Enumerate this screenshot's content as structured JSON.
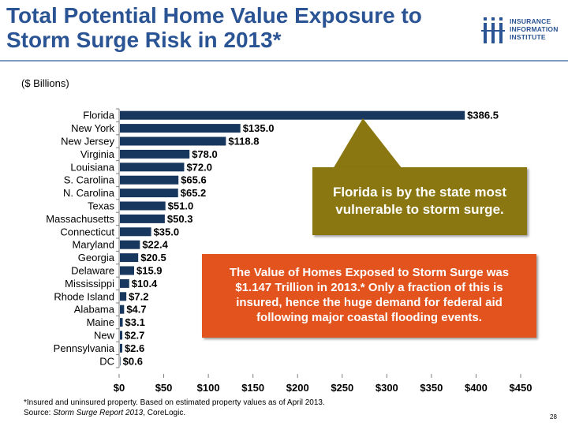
{
  "header": {
    "title_line1": "Total Potential Home Value Exposure to",
    "title_line2": "Storm Surge Risk in 2013*"
  },
  "logo": {
    "line1": "INSURANCE",
    "line2": "INFORMATION",
    "line3": "INSTITUTE"
  },
  "units_label": "($ Billions)",
  "chart_data": {
    "type": "bar",
    "orientation": "horizontal",
    "title": "Total Potential Home Value Exposure to Storm Surge Risk in 2013*",
    "units": "($ Billions)",
    "categories": [
      "Florida",
      "New York",
      "New Jersey",
      "Virginia",
      "Louisiana",
      "S. Carolina",
      "N. Carolina",
      "Texas",
      "Massachusetts",
      "Connecticut",
      "Maryland",
      "Georgia",
      "Delaware",
      "Mississippi",
      "Rhode Island",
      "Alabama",
      "Maine",
      "New",
      "Pennsylvania",
      "DC"
    ],
    "values": [
      386.5,
      135.0,
      118.8,
      78.0,
      72.0,
      65.6,
      65.2,
      51.0,
      50.3,
      35.0,
      22.4,
      20.5,
      15.9,
      10.4,
      7.2,
      4.7,
      3.1,
      2.7,
      2.6,
      0.6
    ],
    "value_labels": [
      "$386.5",
      "$135.0",
      "$118.8",
      "$78.0",
      "$72.0",
      "$65.6",
      "$65.2",
      "$51.0",
      "$50.3",
      "$35.0",
      "$22.4",
      "$20.5",
      "$15.9",
      "$10.4",
      "$7.2",
      "$4.7",
      "$3.1",
      "$2.7",
      "$2.6",
      "$0.6"
    ],
    "x_ticks": [
      0,
      50,
      100,
      150,
      200,
      250,
      300,
      350,
      400,
      450
    ],
    "x_tick_labels": [
      "$0",
      "$50",
      "$100",
      "$150",
      "$200",
      "$250",
      "$300",
      "$350",
      "$400",
      "$450"
    ],
    "xlim": [
      0,
      450
    ],
    "bar_color": "#17375e",
    "grid": false
  },
  "callouts": {
    "florida_note": "Florida is by the state most vulnerable to storm surge.",
    "value_note": "The Value of Homes Exposed to Storm Surge was $1.147 Trillion in 2013.*  Only a fraction of this is insured, hence the huge demand for federal aid following major coastal flooding events."
  },
  "colors": {
    "title": "#2a5494",
    "callout_gold": "#8b7711",
    "callout_orange": "#e2531e"
  },
  "footnote": {
    "line1": "*Insured and uninsured  property.  Based on estimated property values as of April 2013.",
    "source_prefix": "Source: ",
    "source_title": "Storm Surge Report 2013",
    "source_suffix": ", CoreLogic."
  },
  "page_number": "28"
}
